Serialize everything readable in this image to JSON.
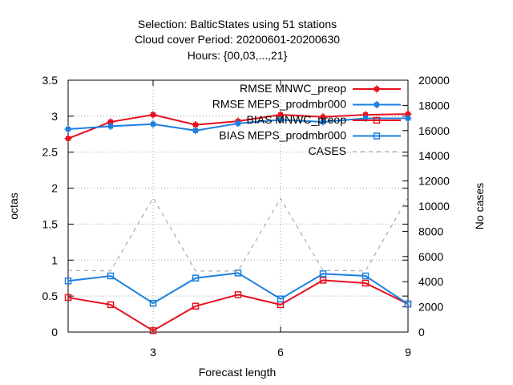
{
  "chart_data": {
    "type": "line",
    "title_lines": [
      "Selection: BalticStates using    51 stations",
      "Cloud cover   Period: 20200601-20200630",
      "Hours: {00,03,...,21}"
    ],
    "xlabel": "Forecast length",
    "ylabel": "octas",
    "y2label": "No cases",
    "xlim": [
      1,
      9
    ],
    "ylim": [
      0,
      3.5
    ],
    "y2lim": [
      0,
      20000
    ],
    "x_ticks": [
      3,
      6,
      9
    ],
    "y_ticks": [
      0,
      0.5,
      1,
      1.5,
      2,
      2.5,
      3,
      3.5
    ],
    "y_tick_labels": [
      "0",
      "0.5",
      "1",
      "1.5",
      "2",
      "2.5",
      "3",
      "3.5"
    ],
    "y2_ticks": [
      0,
      2000,
      4000,
      6000,
      8000,
      10000,
      12000,
      14000,
      16000,
      18000,
      20000
    ],
    "grid": true,
    "legend_position": "top-right",
    "x": [
      1,
      2,
      3,
      4,
      5,
      6,
      7,
      8,
      9
    ],
    "series": [
      {
        "name": "RMSE MNWC_preop",
        "color": "#e8101e",
        "marker": "filled-square",
        "axis": "y",
        "values": [
          2.69,
          2.92,
          3.02,
          2.88,
          2.93,
          3.02,
          2.99,
          3.02,
          3.03
        ]
      },
      {
        "name": "RMSE MEPS_prodmbr000",
        "color": "#1a80e0",
        "marker": "filled-square",
        "axis": "y",
        "values": [
          2.82,
          2.86,
          2.89,
          2.8,
          2.9,
          2.95,
          2.92,
          2.97,
          2.97
        ]
      },
      {
        "name": "BIAS MNWC_preop",
        "color": "#e8101e",
        "marker": "open-square",
        "axis": "y",
        "values": [
          0.48,
          0.38,
          0.02,
          0.36,
          0.52,
          0.38,
          0.72,
          0.68,
          0.39
        ]
      },
      {
        "name": "BIAS MEPS_prodmbr000",
        "color": "#1a80e0",
        "marker": "open-square",
        "axis": "y",
        "values": [
          0.71,
          0.78,
          0.4,
          0.75,
          0.82,
          0.46,
          0.81,
          0.78,
          0.39
        ]
      },
      {
        "name": "CASES",
        "color": "#999999",
        "marker": "none",
        "dashed": true,
        "axis": "y2",
        "values": [
          4900,
          4850,
          10650,
          4850,
          4850,
          10600,
          4900,
          4850,
          10700
        ]
      }
    ]
  }
}
